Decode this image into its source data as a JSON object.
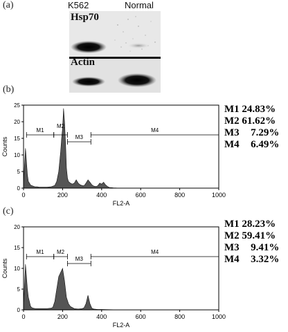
{
  "panel_a": {
    "label": "(a)",
    "lanes": [
      "K562",
      "Normal"
    ],
    "proteins": [
      "Hsp70",
      "Actin"
    ]
  },
  "panel_b": {
    "label": "(b)",
    "stats": [
      {
        "gate": "M1",
        "value": "24.83%"
      },
      {
        "gate": "M2",
        "value": "61.62%"
      },
      {
        "gate": "M3",
        "value": "7.29%"
      },
      {
        "gate": "M4",
        "value": "6.49%"
      }
    ]
  },
  "panel_c": {
    "label": "(c)",
    "stats": [
      {
        "gate": "M1",
        "value": "28.23%"
      },
      {
        "gate": "M2",
        "value": "59.41%"
      },
      {
        "gate": "M3",
        "value": "9.41%"
      },
      {
        "gate": "M4",
        "value": "3.32%"
      }
    ]
  },
  "chart_data": [
    {
      "type": "area",
      "xlabel": "FL2-A",
      "ylabel": "Counts",
      "xlim": [
        0,
        1000
      ],
      "ylim": [
        0,
        25
      ],
      "x_ticks": [
        0,
        200,
        400,
        600,
        800,
        1000
      ],
      "y_ticks": [
        0,
        5,
        10,
        15,
        20,
        25
      ],
      "gates": [
        {
          "name": "M1",
          "range": [
            15,
            155
          ]
        },
        {
          "name": "M2",
          "range": [
            155,
            225
          ]
        },
        {
          "name": "M3",
          "range": [
            225,
            345
          ]
        },
        {
          "name": "M4",
          "range": [
            345,
            1000
          ]
        }
      ],
      "x": [
        0,
        5,
        10,
        15,
        20,
        25,
        30,
        35,
        40,
        50,
        60,
        70,
        80,
        100,
        120,
        140,
        160,
        170,
        180,
        190,
        195,
        200,
        205,
        210,
        215,
        220,
        225,
        230,
        240,
        250,
        260,
        270,
        280,
        290,
        300,
        310,
        320,
        330,
        340,
        350,
        360,
        370,
        380,
        390,
        400,
        410,
        420,
        430,
        440,
        460,
        500,
        600,
        800,
        1000
      ],
      "y": [
        1,
        7,
        12,
        8,
        4,
        2,
        1.5,
        1,
        0.8,
        0.6,
        0.4,
        0.4,
        0.3,
        0.3,
        0.3,
        0.4,
        0.8,
        2,
        5,
        11,
        15,
        18,
        24,
        20,
        14,
        6,
        3,
        2,
        1.5,
        1.2,
        1.5,
        2.5,
        1.5,
        1,
        0.8,
        0.7,
        1.5,
        2.5,
        1.8,
        1,
        0.6,
        0.5,
        0.7,
        1.5,
        1.2,
        1.8,
        1,
        0.5,
        0.2,
        0.1,
        0,
        0,
        0,
        0
      ]
    },
    {
      "type": "area",
      "xlabel": "FL2-A",
      "ylabel": "Counts",
      "xlim": [
        0,
        1000
      ],
      "ylim": [
        0,
        20
      ],
      "x_ticks": [
        0,
        200,
        400,
        600,
        800,
        1000
      ],
      "y_ticks": [
        0,
        5,
        10,
        15,
        20
      ],
      "gates": [
        {
          "name": "M1",
          "range": [
            15,
            155
          ]
        },
        {
          "name": "M2",
          "range": [
            155,
            225
          ]
        },
        {
          "name": "M3",
          "range": [
            225,
            345
          ]
        },
        {
          "name": "M4",
          "range": [
            345,
            1000
          ]
        }
      ],
      "x": [
        0,
        5,
        10,
        15,
        20,
        25,
        30,
        35,
        40,
        50,
        60,
        70,
        80,
        100,
        120,
        140,
        150,
        160,
        170,
        180,
        190,
        200,
        210,
        220,
        230,
        240,
        260,
        280,
        300,
        310,
        320,
        330,
        340,
        350,
        360,
        380,
        400,
        500,
        800,
        1000
      ],
      "y": [
        1,
        6,
        11,
        8,
        5,
        3,
        2,
        1,
        0.6,
        0.4,
        0.3,
        0.3,
        0.3,
        0.3,
        0.3,
        0.4,
        0.6,
        2,
        5,
        8,
        9,
        10,
        7,
        3,
        1.5,
        0.8,
        0.3,
        0.2,
        0.3,
        0.5,
        1.5,
        3.5,
        1.5,
        0.4,
        0.2,
        0.1,
        0.1,
        0,
        0,
        0
      ]
    }
  ]
}
